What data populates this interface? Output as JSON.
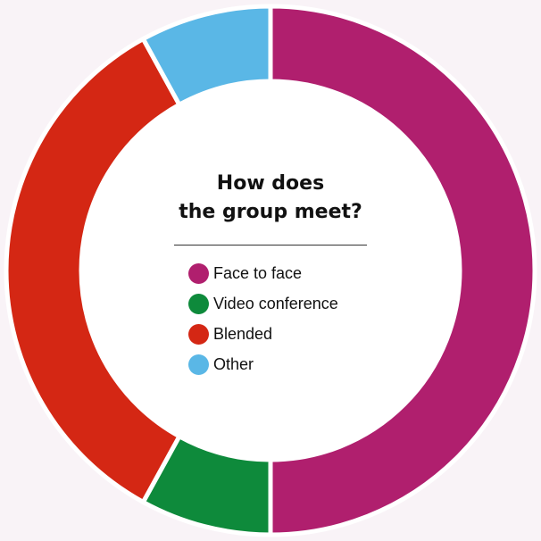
{
  "chart_data": {
    "type": "pie",
    "title": "How does the group meet?",
    "title_lines": [
      "How does",
      "the group meet?"
    ],
    "legend_position": "center",
    "categories": [
      "Face to face",
      "Video conference",
      "Blended",
      "Other"
    ],
    "values": [
      50,
      8,
      34,
      8
    ],
    "colors": [
      "#b01f6e",
      "#0e8a3b",
      "#d42714",
      "#5ab7e6"
    ]
  }
}
